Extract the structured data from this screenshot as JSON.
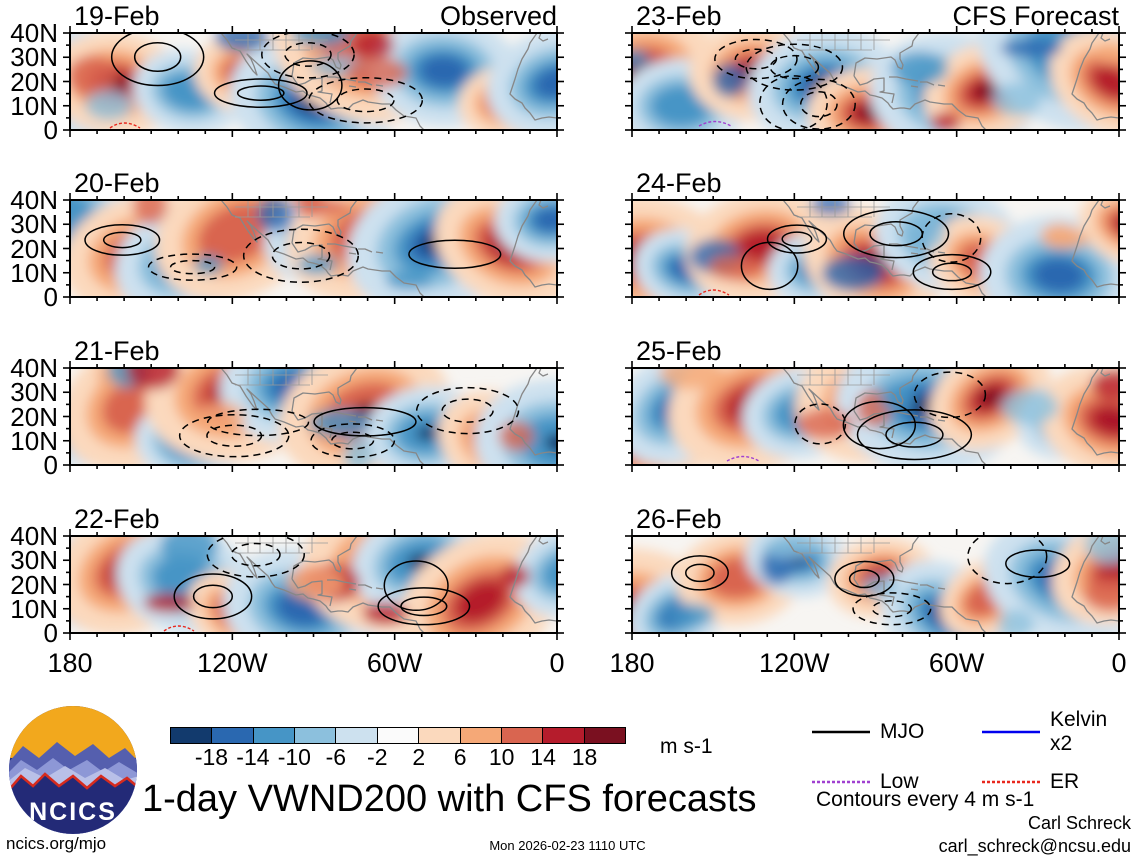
{
  "panels": [
    {
      "date": "19-Feb",
      "subtitle": "Observed"
    },
    {
      "date": "23-Feb",
      "subtitle": "CFS Forecast"
    },
    {
      "date": "20-Feb",
      "subtitle": ""
    },
    {
      "date": "24-Feb",
      "subtitle": ""
    },
    {
      "date": "21-Feb",
      "subtitle": ""
    },
    {
      "date": "25-Feb",
      "subtitle": ""
    },
    {
      "date": "22-Feb",
      "subtitle": ""
    },
    {
      "date": "26-Feb",
      "subtitle": ""
    }
  ],
  "axes": {
    "y_ticks": [
      "40N",
      "30N",
      "20N",
      "10N",
      "0"
    ],
    "x_ticks": [
      "180",
      "120W",
      "60W",
      "0"
    ]
  },
  "colorbar": {
    "levels": [
      "-18",
      "-14",
      "-10",
      "-6",
      "-2",
      "2",
      "6",
      "10",
      "14",
      "18"
    ],
    "colors": [
      "#123a6d",
      "#2a68b0",
      "#4695c6",
      "#8cc0dd",
      "#cde1ef",
      "#fbfbfb",
      "#fbd9bd",
      "#f5a877",
      "#d96550",
      "#b51c2c",
      "#7a1020"
    ],
    "units": "m s-1"
  },
  "legend": {
    "items": [
      {
        "label": "MJO",
        "color": "#000000",
        "style": "solid"
      },
      {
        "label": "Kelvin x2",
        "color": "#0000ee",
        "style": "solid"
      },
      {
        "label": "Low",
        "color": "#a040d0",
        "style": "dotted"
      },
      {
        "label": "ER",
        "color": "#e8281e",
        "style": "dotted"
      }
    ]
  },
  "footer": {
    "title": "1-day VWND200 with CFS forecasts",
    "contours_note": "Contours every 4 m s-1",
    "author": "Carl Schreck",
    "email": "carl_schreck@ncsu.edu",
    "site": "ncics.org/mjo",
    "timestamp": "Mon 2026-02-23 1110 UTC",
    "logo_text": "NCICS"
  },
  "chart_data": {
    "type": "heatmap",
    "title": "1-day VWND200 with CFS forecasts",
    "variable": "200-hPa meridional wind (VWND200) anomaly, filled contours",
    "units": "m s-1",
    "columns": [
      "Observed",
      "CFS Forecast"
    ],
    "panel_dates_observed": [
      "19-Feb",
      "20-Feb",
      "21-Feb",
      "22-Feb"
    ],
    "panel_dates_forecast": [
      "23-Feb",
      "24-Feb",
      "25-Feb",
      "26-Feb"
    ],
    "x_axis": {
      "tick_labels": [
        "180",
        "120W",
        "60W",
        "0"
      ],
      "domain_lon_deg": [
        -180,
        0
      ]
    },
    "y_axis": {
      "tick_labels": [
        "0",
        "10N",
        "20N",
        "30N",
        "40N"
      ],
      "domain_lat_deg": [
        0,
        40
      ]
    },
    "colorbar_levels": [
      -18,
      -14,
      -10,
      -6,
      -2,
      2,
      6,
      10,
      14,
      18
    ],
    "colorbar_colors": [
      "#123a6d",
      "#2a68b0",
      "#4695c6",
      "#8cc0dd",
      "#cde1ef",
      "#fbfbfb",
      "#fbd9bd",
      "#f5a877",
      "#d96550",
      "#b51c2c",
      "#7a1020"
    ],
    "contour_interval": "4 m s-1",
    "overlay_contours": [
      "MJO (black)",
      "Kelvin x2 (blue)",
      "Low (purple)",
      "ER (red)"
    ],
    "legend_position": "bottom-right",
    "grid": false
  }
}
